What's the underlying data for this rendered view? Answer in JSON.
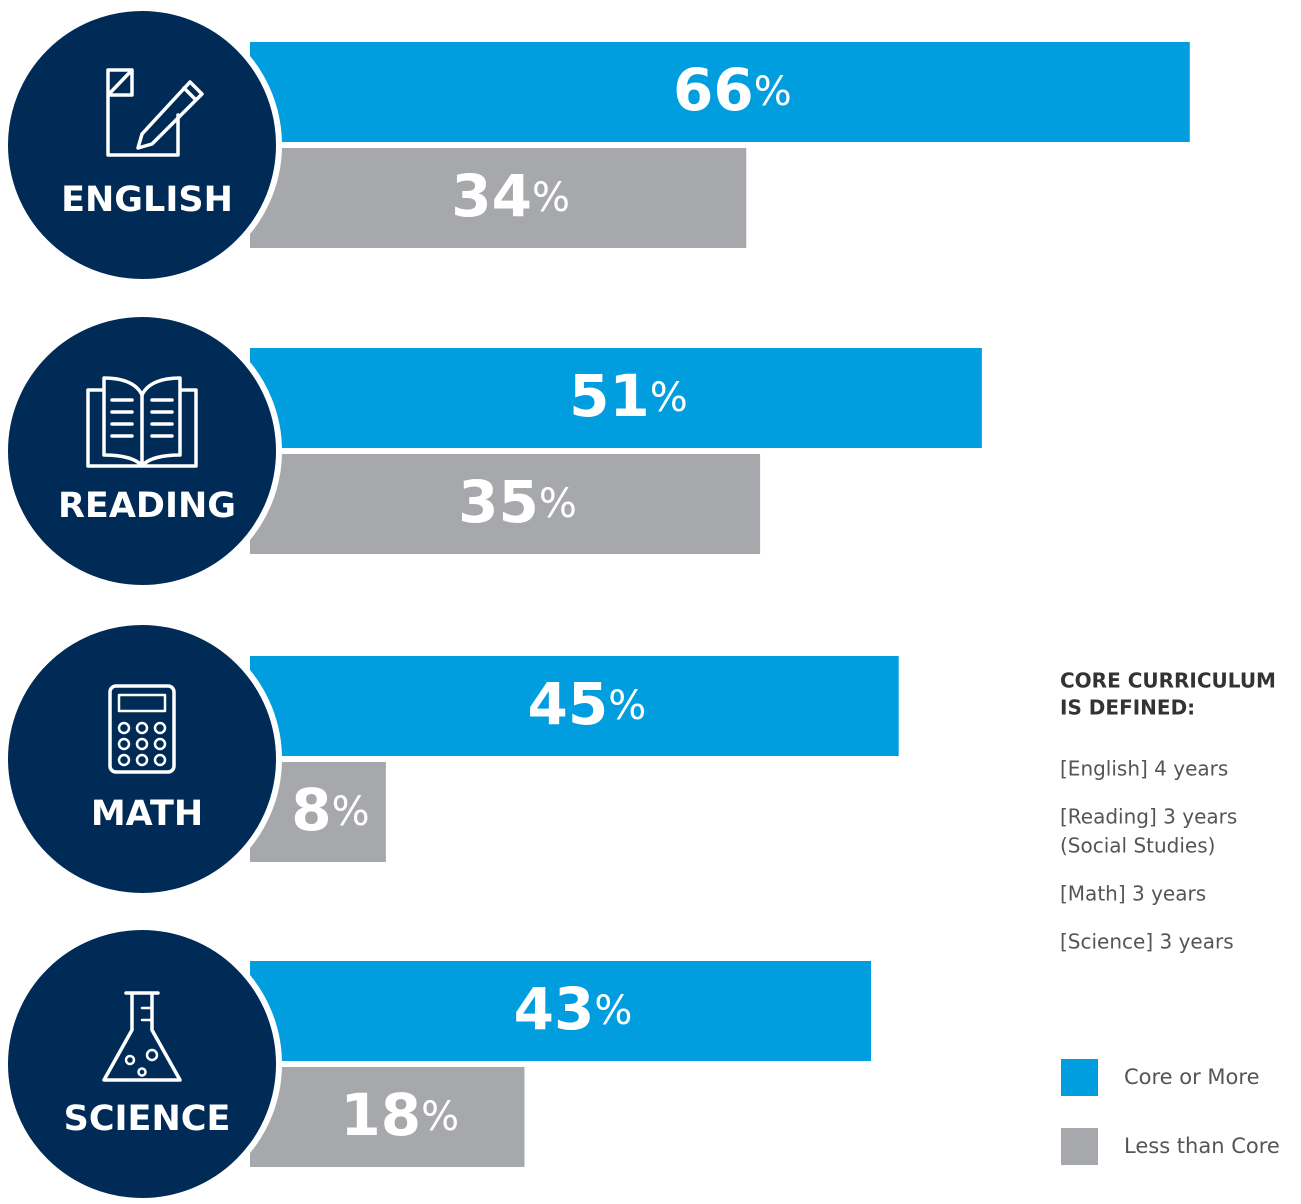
{
  "chart_data": {
    "type": "bar",
    "categories": [
      "ENGLISH",
      "READING",
      "MATH",
      "SCIENCE"
    ],
    "unit": "%",
    "series": [
      {
        "name": "Core or More",
        "color": "#009ddf",
        "values": [
          66,
          51,
          45,
          43
        ]
      },
      {
        "name": "Less than Core",
        "color": "#a7a8ab",
        "values": [
          34,
          35,
          8,
          18
        ]
      }
    ],
    "circle_color": "#002b56",
    "note": {
      "title": [
        "CORE CURRICULUM",
        "IS DEFINED:"
      ],
      "items": [
        [
          "[English] 4 years"
        ],
        [
          "[Reading] 3 years",
          "(Social Studies)"
        ],
        [
          "[Math] 3 years"
        ],
        [
          "[Science] 3 years"
        ]
      ]
    }
  }
}
